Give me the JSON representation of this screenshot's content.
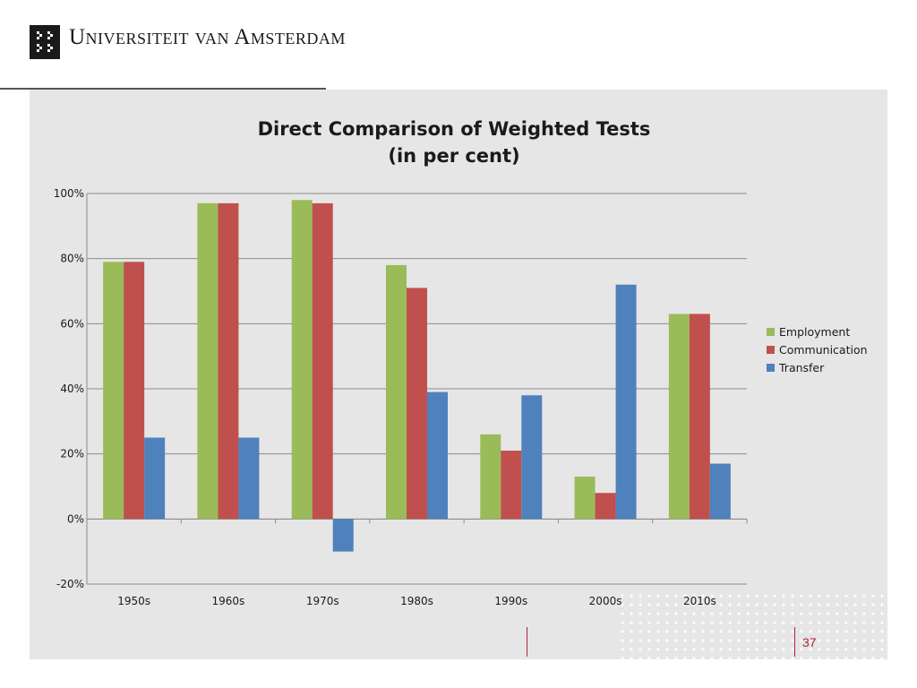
{
  "header": {
    "university_name": "Universiteit van Amsterdam",
    "logo_icon": "uva-logo-icon"
  },
  "footer": {
    "page_number": "37"
  },
  "colors": {
    "panel": "#e6e6e6",
    "accent": "#b0243a"
  },
  "chart_data": {
    "type": "bar",
    "title": "Direct Comparison of Weighted Tests",
    "subtitle": "(in per cent)",
    "categories": [
      "1950s",
      "1960s",
      "1970s",
      "1980s",
      "1990s",
      "2000s",
      "2010s"
    ],
    "series": [
      {
        "name": "Employment",
        "color": "#9bbb59",
        "values": [
          79,
          97,
          98,
          78,
          26,
          13,
          63
        ]
      },
      {
        "name": "Communication",
        "color": "#c0504d",
        "values": [
          79,
          97,
          97,
          71,
          21,
          8,
          63
        ]
      },
      {
        "name": "Transfer",
        "color": "#4f81bd",
        "values": [
          25,
          25,
          -10,
          39,
          38,
          72,
          17
        ]
      }
    ],
    "ylim": [
      -20,
      100
    ],
    "yticks": [
      -20,
      0,
      20,
      40,
      60,
      80,
      100
    ],
    "ytick_labels": [
      "-20%",
      "0%",
      "20%",
      "40%",
      "60%",
      "80%",
      "100%"
    ],
    "grid": true,
    "legend_position": "right"
  }
}
